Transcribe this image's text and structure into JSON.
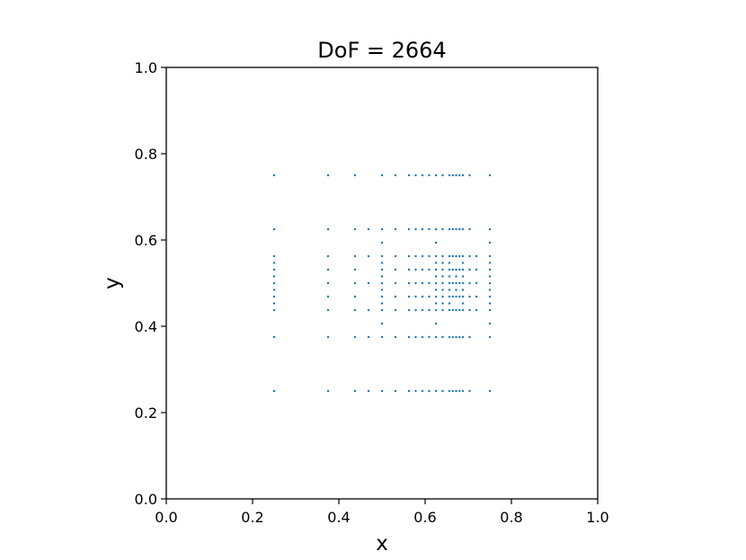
{
  "chart_data": {
    "type": "scatter",
    "title": "DoF = 2664",
    "xlabel": "x",
    "ylabel": "y",
    "xlim": [
      0.0,
      1.0
    ],
    "ylim": [
      0.0,
      1.0
    ],
    "xticks": [
      "0.0",
      "0.2",
      "0.4",
      "0.6",
      "0.8",
      "1.0"
    ],
    "yticks": [
      "0.0",
      "0.2",
      "0.4",
      "0.6",
      "0.8",
      "1.0"
    ],
    "grid": false,
    "marker_color": "#1f77b4",
    "axis_color": "#000000",
    "series": [
      {
        "points": [
          [
            0.25,
            0.25
          ],
          [
            0.375,
            0.25
          ],
          [
            0.4375,
            0.25
          ],
          [
            0.46875,
            0.25
          ],
          [
            0.5,
            0.25
          ],
          [
            0.53125,
            0.25
          ],
          [
            0.5625,
            0.25
          ],
          [
            0.578125,
            0.25
          ],
          [
            0.59375,
            0.25
          ],
          [
            0.609375,
            0.25
          ],
          [
            0.625,
            0.25
          ],
          [
            0.640625,
            0.25
          ],
          [
            0.65625,
            0.25
          ],
          [
            0.6640625,
            0.25
          ],
          [
            0.671875,
            0.25
          ],
          [
            0.6796875,
            0.25
          ],
          [
            0.6875,
            0.25
          ],
          [
            0.703125,
            0.25
          ],
          [
            0.75,
            0.25
          ],
          [
            0.25,
            0.375
          ],
          [
            0.375,
            0.375
          ],
          [
            0.4375,
            0.375
          ],
          [
            0.46875,
            0.375
          ],
          [
            0.5,
            0.375
          ],
          [
            0.53125,
            0.375
          ],
          [
            0.5625,
            0.375
          ],
          [
            0.578125,
            0.375
          ],
          [
            0.59375,
            0.375
          ],
          [
            0.609375,
            0.375
          ],
          [
            0.625,
            0.375
          ],
          [
            0.640625,
            0.375
          ],
          [
            0.65625,
            0.375
          ],
          [
            0.6640625,
            0.375
          ],
          [
            0.671875,
            0.375
          ],
          [
            0.6796875,
            0.375
          ],
          [
            0.6875,
            0.375
          ],
          [
            0.703125,
            0.375
          ],
          [
            0.75,
            0.375
          ],
          [
            0.5,
            0.40625
          ],
          [
            0.625,
            0.40625
          ],
          [
            0.75,
            0.40625
          ],
          [
            0.25,
            0.4375
          ],
          [
            0.25,
            0.453125
          ],
          [
            0.25,
            0.46875
          ],
          [
            0.25,
            0.484375
          ],
          [
            0.25,
            0.5
          ],
          [
            0.25,
            0.515625
          ],
          [
            0.25,
            0.53125
          ],
          [
            0.25,
            0.546875
          ],
          [
            0.25,
            0.5625
          ],
          [
            0.375,
            0.4375
          ],
          [
            0.375,
            0.46875
          ],
          [
            0.375,
            0.5
          ],
          [
            0.375,
            0.53125
          ],
          [
            0.375,
            0.5625
          ],
          [
            0.4375,
            0.4375
          ],
          [
            0.4375,
            0.46875
          ],
          [
            0.4375,
            0.5
          ],
          [
            0.4375,
            0.53125
          ],
          [
            0.4375,
            0.5625
          ],
          [
            0.46875,
            0.4375
          ],
          [
            0.46875,
            0.5
          ],
          [
            0.46875,
            0.5625
          ],
          [
            0.5,
            0.4375
          ],
          [
            0.5,
            0.453125
          ],
          [
            0.5,
            0.46875
          ],
          [
            0.5,
            0.484375
          ],
          [
            0.5,
            0.5
          ],
          [
            0.5,
            0.515625
          ],
          [
            0.5,
            0.53125
          ],
          [
            0.5,
            0.546875
          ],
          [
            0.5,
            0.5625
          ],
          [
            0.53125,
            0.4375
          ],
          [
            0.53125,
            0.46875
          ],
          [
            0.53125,
            0.5
          ],
          [
            0.53125,
            0.53125
          ],
          [
            0.53125,
            0.5625
          ],
          [
            0.5625,
            0.4375
          ],
          [
            0.5625,
            0.46875
          ],
          [
            0.5625,
            0.5
          ],
          [
            0.5625,
            0.53125
          ],
          [
            0.5625,
            0.5625
          ],
          [
            0.578125,
            0.4375
          ],
          [
            0.578125,
            0.46875
          ],
          [
            0.578125,
            0.5
          ],
          [
            0.578125,
            0.53125
          ],
          [
            0.578125,
            0.5625
          ],
          [
            0.59375,
            0.4375
          ],
          [
            0.59375,
            0.46875
          ],
          [
            0.59375,
            0.5
          ],
          [
            0.59375,
            0.53125
          ],
          [
            0.59375,
            0.5625
          ],
          [
            0.609375,
            0.4375
          ],
          [
            0.609375,
            0.46875
          ],
          [
            0.609375,
            0.5
          ],
          [
            0.609375,
            0.53125
          ],
          [
            0.609375,
            0.5625
          ],
          [
            0.625,
            0.4375
          ],
          [
            0.625,
            0.453125
          ],
          [
            0.625,
            0.46875
          ],
          [
            0.625,
            0.484375
          ],
          [
            0.625,
            0.5
          ],
          [
            0.625,
            0.515625
          ],
          [
            0.625,
            0.53125
          ],
          [
            0.625,
            0.546875
          ],
          [
            0.625,
            0.5625
          ],
          [
            0.640625,
            0.4375
          ],
          [
            0.640625,
            0.453125
          ],
          [
            0.640625,
            0.46875
          ],
          [
            0.640625,
            0.484375
          ],
          [
            0.640625,
            0.5
          ],
          [
            0.640625,
            0.515625
          ],
          [
            0.640625,
            0.53125
          ],
          [
            0.640625,
            0.546875
          ],
          [
            0.640625,
            0.5625
          ],
          [
            0.65625,
            0.4375
          ],
          [
            0.65625,
            0.453125
          ],
          [
            0.65625,
            0.46875
          ],
          [
            0.65625,
            0.484375
          ],
          [
            0.65625,
            0.5
          ],
          [
            0.65625,
            0.515625
          ],
          [
            0.65625,
            0.53125
          ],
          [
            0.65625,
            0.546875
          ],
          [
            0.65625,
            0.5625
          ],
          [
            0.6640625,
            0.4375
          ],
          [
            0.6640625,
            0.46875
          ],
          [
            0.6640625,
            0.5
          ],
          [
            0.6640625,
            0.53125
          ],
          [
            0.6640625,
            0.5625
          ],
          [
            0.671875,
            0.4375
          ],
          [
            0.671875,
            0.46875
          ],
          [
            0.671875,
            0.484375
          ],
          [
            0.671875,
            0.5
          ],
          [
            0.671875,
            0.515625
          ],
          [
            0.671875,
            0.53125
          ],
          [
            0.671875,
            0.5625
          ],
          [
            0.6796875,
            0.4375
          ],
          [
            0.6796875,
            0.46875
          ],
          [
            0.6796875,
            0.5
          ],
          [
            0.6796875,
            0.53125
          ],
          [
            0.6796875,
            0.5625
          ],
          [
            0.6875,
            0.4375
          ],
          [
            0.6875,
            0.453125
          ],
          [
            0.6875,
            0.46875
          ],
          [
            0.6875,
            0.484375
          ],
          [
            0.6875,
            0.5
          ],
          [
            0.6875,
            0.515625
          ],
          [
            0.6875,
            0.53125
          ],
          [
            0.6875,
            0.546875
          ],
          [
            0.6875,
            0.5625
          ],
          [
            0.703125,
            0.4375
          ],
          [
            0.703125,
            0.46875
          ],
          [
            0.703125,
            0.5
          ],
          [
            0.703125,
            0.53125
          ],
          [
            0.703125,
            0.5625
          ],
          [
            0.71875,
            0.4375
          ],
          [
            0.71875,
            0.46875
          ],
          [
            0.71875,
            0.5
          ],
          [
            0.71875,
            0.53125
          ],
          [
            0.71875,
            0.5625
          ],
          [
            0.75,
            0.4375
          ],
          [
            0.75,
            0.453125
          ],
          [
            0.75,
            0.46875
          ],
          [
            0.75,
            0.484375
          ],
          [
            0.75,
            0.5
          ],
          [
            0.75,
            0.515625
          ],
          [
            0.75,
            0.53125
          ],
          [
            0.75,
            0.546875
          ],
          [
            0.75,
            0.5625
          ],
          [
            0.5,
            0.59375
          ],
          [
            0.625,
            0.59375
          ],
          [
            0.75,
            0.59375
          ],
          [
            0.25,
            0.625
          ],
          [
            0.375,
            0.625
          ],
          [
            0.4375,
            0.625
          ],
          [
            0.46875,
            0.625
          ],
          [
            0.5,
            0.625
          ],
          [
            0.53125,
            0.625
          ],
          [
            0.5625,
            0.625
          ],
          [
            0.578125,
            0.625
          ],
          [
            0.59375,
            0.625
          ],
          [
            0.609375,
            0.625
          ],
          [
            0.625,
            0.625
          ],
          [
            0.640625,
            0.625
          ],
          [
            0.65625,
            0.625
          ],
          [
            0.6640625,
            0.625
          ],
          [
            0.671875,
            0.625
          ],
          [
            0.6796875,
            0.625
          ],
          [
            0.6875,
            0.625
          ],
          [
            0.703125,
            0.625
          ],
          [
            0.75,
            0.625
          ],
          [
            0.25,
            0.75
          ],
          [
            0.375,
            0.75
          ],
          [
            0.4375,
            0.75
          ],
          [
            0.5,
            0.75
          ],
          [
            0.53125,
            0.75
          ],
          [
            0.5625,
            0.75
          ],
          [
            0.578125,
            0.75
          ],
          [
            0.59375,
            0.75
          ],
          [
            0.609375,
            0.75
          ],
          [
            0.625,
            0.75
          ],
          [
            0.640625,
            0.75
          ],
          [
            0.65625,
            0.75
          ],
          [
            0.6640625,
            0.75
          ],
          [
            0.671875,
            0.75
          ],
          [
            0.6796875,
            0.75
          ],
          [
            0.6875,
            0.75
          ],
          [
            0.703125,
            0.75
          ],
          [
            0.75,
            0.75
          ]
        ]
      }
    ]
  }
}
